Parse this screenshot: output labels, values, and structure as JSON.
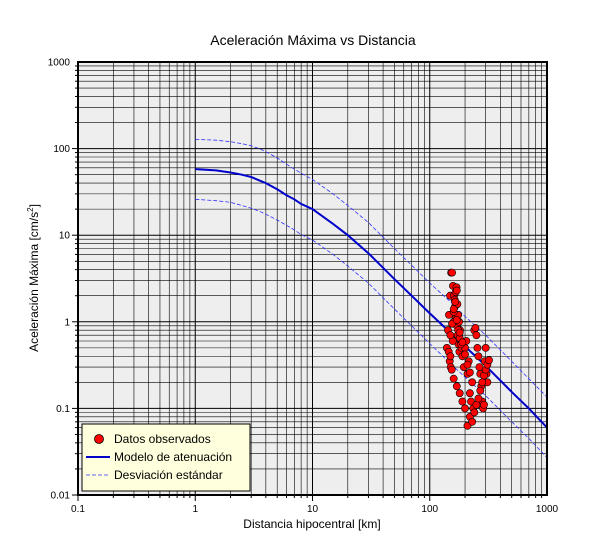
{
  "chart_data": {
    "type": "scatter",
    "title": "Aceleración Máxima vs Distancia",
    "xlabel": "Distancia hipocentral [km]",
    "ylabel": "Aceleración Máxima [cm/s",
    "ylabel_sup": "2",
    "ylabel_end": "]",
    "x_scale": "log",
    "y_scale": "log",
    "xlim": [
      0.1,
      1000
    ],
    "ylim": [
      0.01,
      1000
    ],
    "x_ticks": [
      "0.1",
      "1",
      "10",
      "100",
      "1000"
    ],
    "y_ticks": [
      "0.01",
      "0.1",
      "1",
      "10",
      "100",
      "1000"
    ],
    "grid": true,
    "background": "#eeeeee",
    "legend_position": "bottom-left",
    "series": [
      {
        "name": "Datos observados",
        "kind": "points",
        "color": "#ff0000",
        "x": [
          140,
          143,
          146,
          149,
          152,
          155,
          158,
          161,
          164,
          167,
          170,
          173,
          176,
          179,
          148,
          151,
          154,
          157,
          160,
          163,
          166,
          169,
          172,
          175,
          178,
          181,
          184,
          187,
          190,
          195,
          200,
          205,
          210,
          215,
          220,
          225,
          230,
          235,
          240,
          245,
          250,
          255,
          260,
          265,
          270,
          275,
          280,
          285,
          290,
          295,
          300,
          305,
          310,
          145,
          150,
          155,
          160,
          165,
          170,
          175,
          180,
          185,
          150,
          160,
          170,
          180,
          190,
          200,
          210,
          220,
          230,
          240,
          250,
          260,
          270,
          280,
          290,
          300,
          310,
          320,
          160,
          170,
          180,
          190,
          200,
          210,
          220
        ],
        "y": [
          0.5,
          0.8,
          1.2,
          2.0,
          3.7,
          3.7,
          2.6,
          2.0,
          1.5,
          1.1,
          0.9,
          0.7,
          0.55,
          0.45,
          0.35,
          0.3,
          0.28,
          0.6,
          1.0,
          1.8,
          2.2,
          2.5,
          1.6,
          1.2,
          1.0,
          0.8,
          0.6,
          0.5,
          0.4,
          0.3,
          0.5,
          0.6,
          0.25,
          0.35,
          0.15,
          0.12,
          0.2,
          0.1,
          0.8,
          0.85,
          0.7,
          0.5,
          0.4,
          0.3,
          0.25,
          0.18,
          0.12,
          0.1,
          0.11,
          0.35,
          0.5,
          0.25,
          0.2,
          0.45,
          0.7,
          0.95,
          1.3,
          1.7,
          2.3,
          0.8,
          0.65,
          0.55,
          0.4,
          0.22,
          0.18,
          0.15,
          0.12,
          0.1,
          0.063,
          0.08,
          0.07,
          0.09,
          0.11,
          0.13,
          0.16,
          0.2,
          0.24,
          0.28,
          0.32,
          0.36,
          1.4,
          1.05,
          0.75,
          0.58,
          0.42,
          0.32,
          0.26
        ]
      },
      {
        "name": "Modelo de atenuación",
        "kind": "line",
        "color": "#0000cc",
        "x": [
          1,
          1.5,
          2,
          2.5,
          3,
          3.5,
          4,
          5,
          6,
          7,
          8,
          10,
          15,
          20,
          30,
          50,
          70,
          100,
          150,
          200,
          300,
          500,
          700,
          1000
        ],
        "y": [
          58,
          56,
          53,
          50,
          47,
          43,
          40,
          34,
          29,
          26,
          23,
          20,
          13.5,
          10,
          6.2,
          3.1,
          2.0,
          1.25,
          0.75,
          0.52,
          0.31,
          0.155,
          0.1,
          0.06
        ]
      },
      {
        "name": "Desviación estándar",
        "kind": "dashed",
        "color": "#3333ff",
        "x": [
          1,
          1.5,
          2,
          2.5,
          3,
          3.5,
          4,
          5,
          6,
          7,
          8,
          10,
          15,
          20,
          30,
          50,
          70,
          100,
          150,
          200,
          300,
          500,
          700,
          1000
        ],
        "y": [
          128,
          125,
          120,
          114,
          108,
          100,
          92,
          78,
          66,
          58,
          52,
          44,
          30,
          22,
          14,
          7,
          4.5,
          2.8,
          1.7,
          1.15,
          0.7,
          0.35,
          0.22,
          0.135
        ]
      },
      {
        "name": "Desviación estándar",
        "kind": "dashed",
        "color": "#3333ff",
        "x": [
          1,
          1.5,
          2,
          2.5,
          3,
          3.5,
          4,
          5,
          6,
          7,
          8,
          10,
          15,
          20,
          30,
          50,
          70,
          100,
          150,
          200,
          300,
          500,
          700,
          1000
        ],
        "y": [
          26,
          25,
          24,
          22,
          20.5,
          19,
          17.5,
          15,
          13,
          11.5,
          10.2,
          8.8,
          6,
          4.4,
          2.8,
          1.4,
          0.9,
          0.56,
          0.33,
          0.23,
          0.14,
          0.07,
          0.045,
          0.027
        ]
      }
    ]
  }
}
